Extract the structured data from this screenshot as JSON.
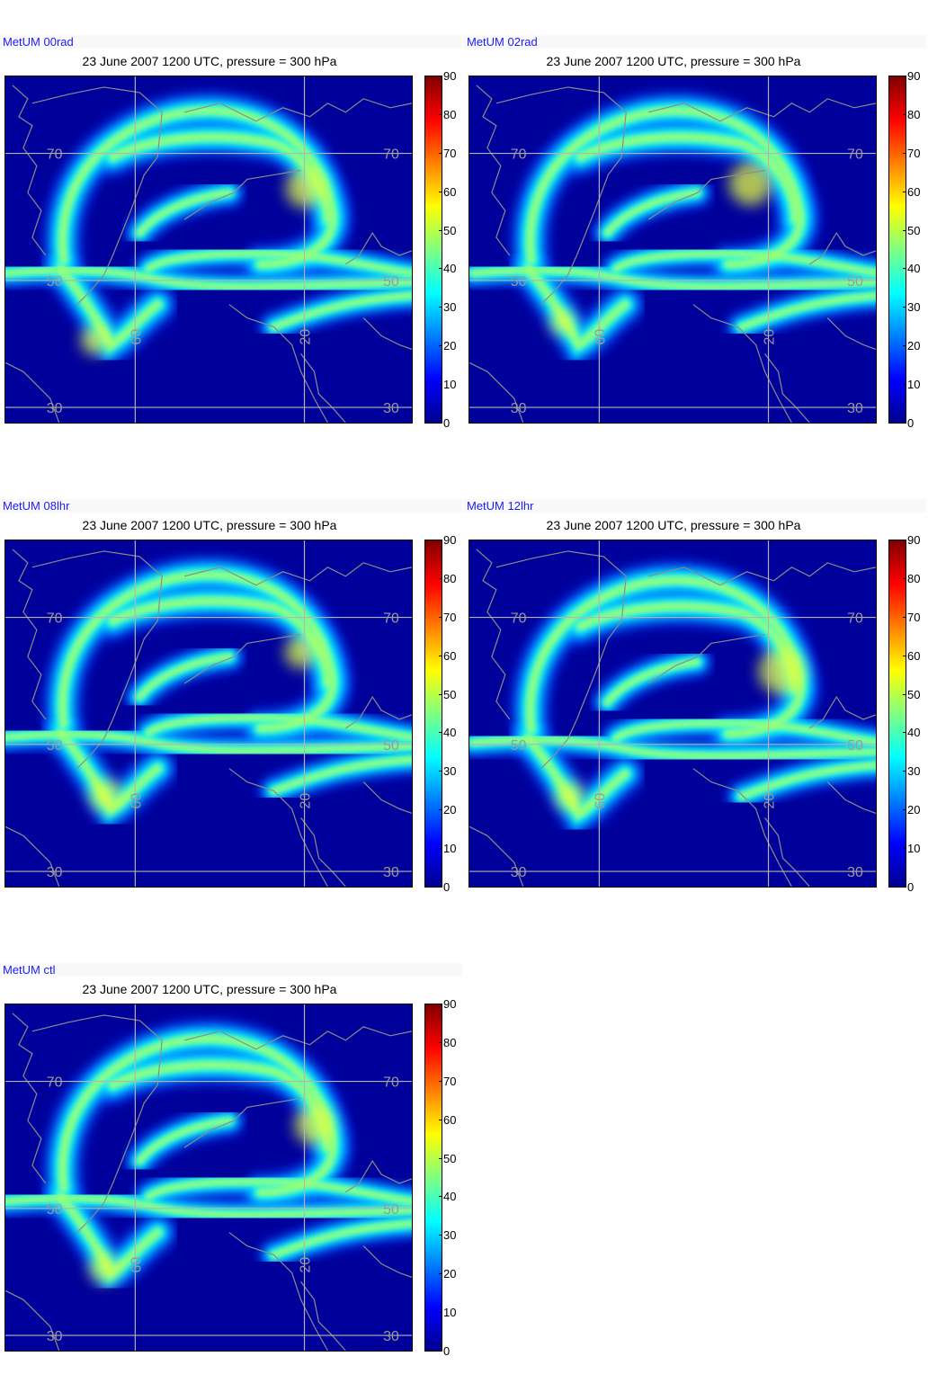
{
  "panels": [
    {
      "run_label": "MetUM 00rad",
      "title": "23 June 2007 1200 UTC, pressure = 300 hPa"
    },
    {
      "run_label": "MetUM 02rad",
      "title": "23 June 2007 1200 UTC, pressure = 300 hPa"
    },
    {
      "run_label": "MetUM 08lhr",
      "title": "23 June 2007 1200 UTC, pressure = 300 hPa"
    },
    {
      "run_label": "MetUM 12lhr",
      "title": "23 June 2007 1200 UTC, pressure = 300 hPa"
    },
    {
      "run_label": "MetUM ctl",
      "title": "23 June 2007 1200 UTC, pressure = 300 hPa"
    }
  ],
  "map_labels": {
    "lat_70": "70",
    "lat_50": "50",
    "lat_30": "30",
    "lon_60": "60",
    "lon_20": "20"
  },
  "chart_data": {
    "type": "heatmap",
    "title": "23 June 2007 1200 UTC, pressure = 300 hPa",
    "panel_count": 5,
    "colorbar": {
      "ticks": [
        "90",
        "80",
        "70",
        "60",
        "50",
        "40",
        "30",
        "20",
        "10",
        "0"
      ],
      "range": [
        0,
        90
      ],
      "colormap": "jet"
    },
    "map": {
      "latitude_gridlines": [
        70,
        50,
        30
      ],
      "longitude_gridlines": [
        60,
        20
      ],
      "coastlines": true
    }
  },
  "colors": {
    "run_label": "#1a1aff",
    "background_field": "#00009a",
    "gridline": "#b4b4b4",
    "coastline": "#8c8c8c"
  }
}
